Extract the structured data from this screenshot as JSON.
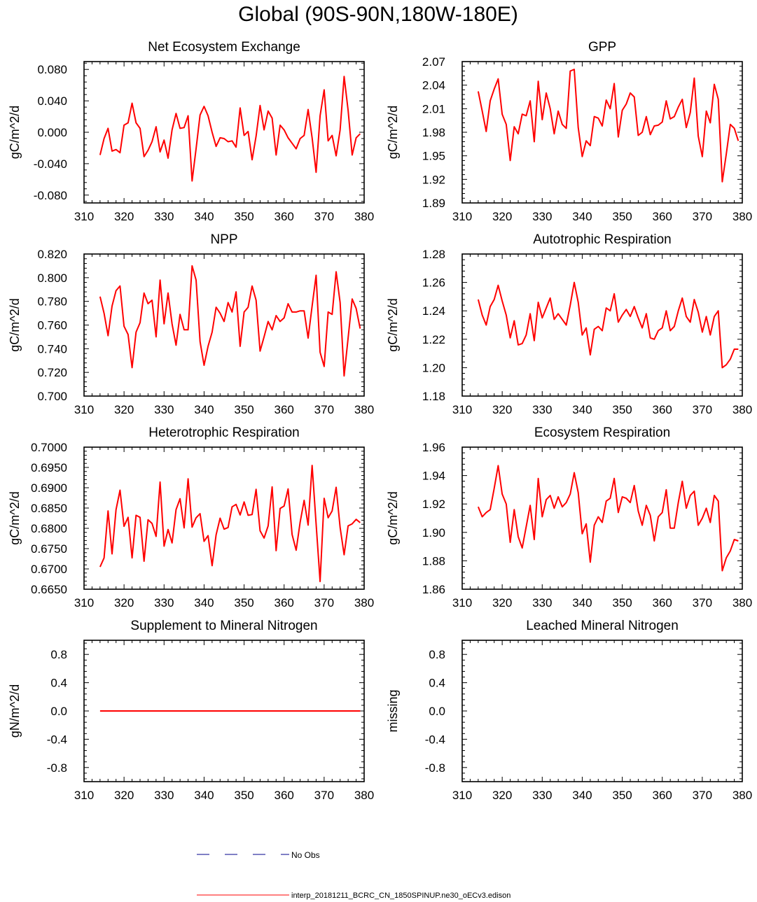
{
  "title": "Global (90S-90N,180W-180E)",
  "colors": {
    "model": "#ff0000",
    "obs": "#00008b",
    "frame": "#000000"
  },
  "legend": {
    "obs_label": "No Obs",
    "model_label": "interp_20181211_BCRC_CN_1850SPINUP.ne30_oECv3.edison"
  },
  "chart_data": [
    {
      "type": "line",
      "title": "Net Ecosystem Exchange",
      "xlabel": "",
      "ylabel": "gC/m^2/d",
      "xlim": [
        310,
        380
      ],
      "ylim": [
        -0.09,
        0.09
      ],
      "xticks": [
        310,
        320,
        330,
        340,
        350,
        360,
        370,
        380
      ],
      "xtick_labels": [
        "310",
        "320",
        "330",
        "340",
        "350",
        "360",
        "370",
        "380"
      ],
      "yticks": [
        -0.08,
        -0.04,
        0.0,
        0.04,
        0.08
      ],
      "ytick_labels": [
        "-0.080",
        "-0.040",
        "0.000",
        "0.040",
        "0.080"
      ],
      "x_start": 314,
      "series": [
        {
          "name": "interp_20181211_BCRC_CN_1850SPINUP.ne30_oECv3.edison",
          "values": [
            -0.029,
            -0.008,
            0.005,
            -0.024,
            -0.022,
            -0.026,
            0.009,
            0.012,
            0.037,
            0.012,
            0.005,
            -0.031,
            -0.023,
            -0.012,
            0.007,
            -0.025,
            -0.01,
            -0.033,
            0.003,
            0.024,
            0.005,
            0.006,
            0.021,
            -0.062,
            -0.021,
            0.022,
            0.033,
            0.021,
            0.0,
            -0.018,
            -0.007,
            -0.008,
            -0.012,
            -0.011,
            -0.019,
            0.031,
            -0.004,
            0.001,
            -0.035,
            -0.005,
            0.034,
            0.003,
            0.027,
            0.018,
            -0.029,
            0.009,
            0.003,
            -0.007,
            -0.014,
            -0.021,
            -0.008,
            -0.004,
            0.029,
            -0.007,
            -0.051,
            0.021,
            0.054,
            -0.011,
            -0.004,
            -0.03,
            0.003,
            0.071,
            0.028,
            -0.029,
            -0.007,
            -0.002
          ]
        }
      ]
    },
    {
      "type": "line",
      "title": "GPP",
      "xlabel": "",
      "ylabel": "gC/m^2/d",
      "xlim": [
        310,
        380
      ],
      "ylim": [
        1.89,
        2.07
      ],
      "xticks": [
        310,
        320,
        330,
        340,
        350,
        360,
        370,
        380
      ],
      "xtick_labels": [
        "310",
        "320",
        "330",
        "340",
        "350",
        "360",
        "370",
        "380"
      ],
      "yticks": [
        1.89,
        1.92,
        1.95,
        1.98,
        2.01,
        2.04,
        2.07
      ],
      "ytick_labels": [
        "1.89",
        "1.92",
        "1.95",
        "1.98",
        "2.01",
        "2.04",
        "2.07"
      ],
      "x_start": 314,
      "series": [
        {
          "name": "interp_20181211_BCRC_CN_1850SPINUP.ne30_oECv3.edison",
          "values": [
            2.032,
            2.007,
            1.981,
            2.02,
            2.035,
            2.048,
            2.003,
            1.99,
            1.944,
            1.987,
            1.978,
            2.003,
            2.001,
            2.02,
            1.968,
            2.045,
            1.996,
            2.03,
            2.01,
            1.978,
            2.007,
            1.99,
            1.985,
            2.058,
            2.06,
            1.986,
            1.949,
            1.969,
            1.963,
            2.0,
            1.998,
            1.988,
            2.021,
            2.01,
            2.042,
            1.974,
            2.008,
            2.016,
            2.03,
            2.025,
            1.976,
            1.98,
            2.0,
            1.977,
            1.988,
            1.989,
            1.993,
            2.02,
            1.997,
            2.0,
            2.012,
            2.022,
            1.986,
            2.005,
            2.049,
            1.975,
            1.949,
            2.007,
            1.992,
            2.041,
            2.022,
            1.917,
            1.952,
            1.99,
            1.985,
            1.969
          ]
        }
      ]
    },
    {
      "type": "line",
      "title": "NPP",
      "xlabel": "",
      "ylabel": "gC/m^2/d",
      "xlim": [
        310,
        380
      ],
      "ylim": [
        0.7,
        0.82
      ],
      "xticks": [
        310,
        320,
        330,
        340,
        350,
        360,
        370,
        380
      ],
      "xtick_labels": [
        "310",
        "320",
        "330",
        "340",
        "350",
        "360",
        "370",
        "380"
      ],
      "yticks": [
        0.7,
        0.72,
        0.74,
        0.76,
        0.78,
        0.8,
        0.82
      ],
      "ytick_labels": [
        "0.700",
        "0.720",
        "0.740",
        "0.760",
        "0.780",
        "0.800",
        "0.820"
      ],
      "x_start": 314,
      "series": [
        {
          "name": "interp_20181211_BCRC_CN_1850SPINUP.ne30_oECv3.edison",
          "values": [
            0.784,
            0.77,
            0.751,
            0.776,
            0.789,
            0.793,
            0.759,
            0.752,
            0.724,
            0.754,
            0.762,
            0.787,
            0.778,
            0.781,
            0.75,
            0.798,
            0.761,
            0.787,
            0.761,
            0.743,
            0.769,
            0.756,
            0.756,
            0.81,
            0.798,
            0.746,
            0.726,
            0.742,
            0.754,
            0.775,
            0.77,
            0.763,
            0.779,
            0.771,
            0.788,
            0.742,
            0.771,
            0.775,
            0.793,
            0.781,
            0.738,
            0.75,
            0.763,
            0.756,
            0.768,
            0.763,
            0.766,
            0.778,
            0.771,
            0.771,
            0.772,
            0.772,
            0.749,
            0.776,
            0.802,
            0.737,
            0.725,
            0.771,
            0.769,
            0.805,
            0.779,
            0.717,
            0.749,
            0.782,
            0.774,
            0.757
          ]
        }
      ]
    },
    {
      "type": "line",
      "title": "Autotrophic Respiration",
      "xlabel": "",
      "ylabel": "gC/m^2/d",
      "xlim": [
        310,
        380
      ],
      "ylim": [
        1.18,
        1.28
      ],
      "xticks": [
        310,
        320,
        330,
        340,
        350,
        360,
        370,
        380
      ],
      "xtick_labels": [
        "310",
        "320",
        "330",
        "340",
        "350",
        "360",
        "370",
        "380"
      ],
      "yticks": [
        1.18,
        1.2,
        1.22,
        1.24,
        1.26,
        1.28
      ],
      "ytick_labels": [
        "1.18",
        "1.20",
        "1.22",
        "1.24",
        "1.26",
        "1.28"
      ],
      "x_start": 314,
      "series": [
        {
          "name": "interp_20181211_BCRC_CN_1850SPINUP.ne30_oECv3.edison",
          "values": [
            1.248,
            1.237,
            1.23,
            1.243,
            1.248,
            1.258,
            1.247,
            1.237,
            1.221,
            1.233,
            1.216,
            1.217,
            1.223,
            1.238,
            1.219,
            1.246,
            1.235,
            1.242,
            1.249,
            1.234,
            1.238,
            1.234,
            1.23,
            1.244,
            1.26,
            1.246,
            1.223,
            1.228,
            1.209,
            1.227,
            1.229,
            1.226,
            1.242,
            1.24,
            1.252,
            1.232,
            1.237,
            1.241,
            1.236,
            1.243,
            1.235,
            1.228,
            1.238,
            1.221,
            1.22,
            1.226,
            1.228,
            1.24,
            1.226,
            1.229,
            1.24,
            1.249,
            1.236,
            1.232,
            1.248,
            1.239,
            1.225,
            1.236,
            1.223,
            1.236,
            1.24,
            1.2,
            1.202,
            1.206,
            1.213,
            1.213
          ]
        }
      ]
    },
    {
      "type": "line",
      "title": "Heterotrophic Respiration",
      "xlabel": "",
      "ylabel": "gC/m^2/d",
      "xlim": [
        310,
        380
      ],
      "ylim": [
        0.665,
        0.7
      ],
      "xticks": [
        310,
        320,
        330,
        340,
        350,
        360,
        370,
        380
      ],
      "xtick_labels": [
        "310",
        "320",
        "330",
        "340",
        "350",
        "360",
        "370",
        "380"
      ],
      "yticks": [
        0.665,
        0.67,
        0.675,
        0.68,
        0.685,
        0.69,
        0.695,
        0.7
      ],
      "ytick_labels": [
        "0.6650",
        "0.6700",
        "0.6750",
        "0.6800",
        "0.6850",
        "0.6900",
        "0.6950",
        "0.7000"
      ],
      "x_start": 314,
      "series": [
        {
          "name": "interp_20181211_BCRC_CN_1850SPINUP.ne30_oECv3.edison",
          "values": [
            0.6705,
            0.6727,
            0.6843,
            0.6737,
            0.6846,
            0.6894,
            0.6805,
            0.6827,
            0.6727,
            0.6832,
            0.6827,
            0.6719,
            0.6821,
            0.6812,
            0.678,
            0.6914,
            0.6756,
            0.6797,
            0.6764,
            0.6846,
            0.6873,
            0.6801,
            0.6922,
            0.6803,
            0.6826,
            0.6836,
            0.6768,
            0.6782,
            0.6708,
            0.6784,
            0.6825,
            0.6798,
            0.6802,
            0.6853,
            0.6859,
            0.6833,
            0.6865,
            0.6832,
            0.6834,
            0.6896,
            0.6794,
            0.6776,
            0.6806,
            0.6902,
            0.6745,
            0.6849,
            0.6855,
            0.6897,
            0.6785,
            0.6746,
            0.6815,
            0.6869,
            0.6808,
            0.6955,
            0.6811,
            0.6669,
            0.6874,
            0.6826,
            0.6843,
            0.6901,
            0.6802,
            0.6735,
            0.6806,
            0.6811,
            0.6822,
            0.6814
          ]
        }
      ]
    },
    {
      "type": "line",
      "title": "Ecosystem Respiration",
      "xlabel": "",
      "ylabel": "gC/m^2/d",
      "xlim": [
        310,
        380
      ],
      "ylim": [
        1.86,
        1.96
      ],
      "xticks": [
        310,
        320,
        330,
        340,
        350,
        360,
        370,
        380
      ],
      "xtick_labels": [
        "310",
        "320",
        "330",
        "340",
        "350",
        "360",
        "370",
        "380"
      ],
      "yticks": [
        1.86,
        1.88,
        1.9,
        1.92,
        1.94,
        1.96
      ],
      "ytick_labels": [
        "1.86",
        "1.88",
        "1.90",
        "1.92",
        "1.94",
        "1.96"
      ],
      "x_start": 314,
      "series": [
        {
          "name": "interp_20181211_BCRC_CN_1850SPINUP.ne30_oECv3.edison",
          "values": [
            1.918,
            1.911,
            1.914,
            1.916,
            1.931,
            1.947,
            1.927,
            1.92,
            1.893,
            1.916,
            1.897,
            1.889,
            1.904,
            1.919,
            1.895,
            1.938,
            1.911,
            1.923,
            1.926,
            1.917,
            1.925,
            1.918,
            1.921,
            1.927,
            1.942,
            1.928,
            1.899,
            1.906,
            1.879,
            1.905,
            1.911,
            1.907,
            1.922,
            1.924,
            1.938,
            1.914,
            1.925,
            1.924,
            1.921,
            1.933,
            1.915,
            1.905,
            1.919,
            1.912,
            1.894,
            1.911,
            1.914,
            1.93,
            1.903,
            1.903,
            1.921,
            1.936,
            1.917,
            1.926,
            1.929,
            1.905,
            1.91,
            1.917,
            1.907,
            1.926,
            1.922,
            1.873,
            1.882,
            1.887,
            1.895,
            1.894
          ]
        }
      ]
    },
    {
      "type": "line",
      "title": "Supplement to Mineral Nitrogen",
      "xlabel": "",
      "ylabel": "gN/m^2/d",
      "xlim": [
        310,
        380
      ],
      "ylim": [
        -1.0,
        1.0
      ],
      "xticks": [
        310,
        320,
        330,
        340,
        350,
        360,
        370,
        380
      ],
      "xtick_labels": [
        "310",
        "320",
        "330",
        "340",
        "350",
        "360",
        "370",
        "380"
      ],
      "yticks": [
        -0.8,
        -0.4,
        0.0,
        0.4,
        0.8
      ],
      "ytick_labels": [
        "-0.8",
        "-0.4",
        "0.0",
        "0.4",
        "0.8"
      ],
      "x_start": 314,
      "series": [
        {
          "name": "interp_20181211_BCRC_CN_1850SPINUP.ne30_oECv3.edison",
          "values": [
            0,
            0,
            0,
            0,
            0,
            0,
            0,
            0,
            0,
            0,
            0,
            0,
            0,
            0,
            0,
            0,
            0,
            0,
            0,
            0,
            0,
            0,
            0,
            0,
            0,
            0,
            0,
            0,
            0,
            0,
            0,
            0,
            0,
            0,
            0,
            0,
            0,
            0,
            0,
            0,
            0,
            0,
            0,
            0,
            0,
            0,
            0,
            0,
            0,
            0,
            0,
            0,
            0,
            0,
            0,
            0,
            0,
            0,
            0,
            0,
            0,
            0,
            0,
            0,
            0,
            0
          ]
        }
      ]
    },
    {
      "type": "line",
      "title": "Leached Mineral Nitrogen",
      "xlabel": "",
      "ylabel": "missing",
      "xlim": [
        310,
        380
      ],
      "ylim": [
        -1.0,
        1.0
      ],
      "xticks": [
        310,
        320,
        330,
        340,
        350,
        360,
        370,
        380
      ],
      "xtick_labels": [
        "310",
        "320",
        "330",
        "340",
        "350",
        "360",
        "370",
        "380"
      ],
      "yticks": [
        -0.8,
        -0.4,
        0.0,
        0.4,
        0.8
      ],
      "ytick_labels": [
        "-0.8",
        "-0.4",
        "0.0",
        "0.4",
        "0.8"
      ],
      "x_start": 314,
      "series": []
    }
  ]
}
